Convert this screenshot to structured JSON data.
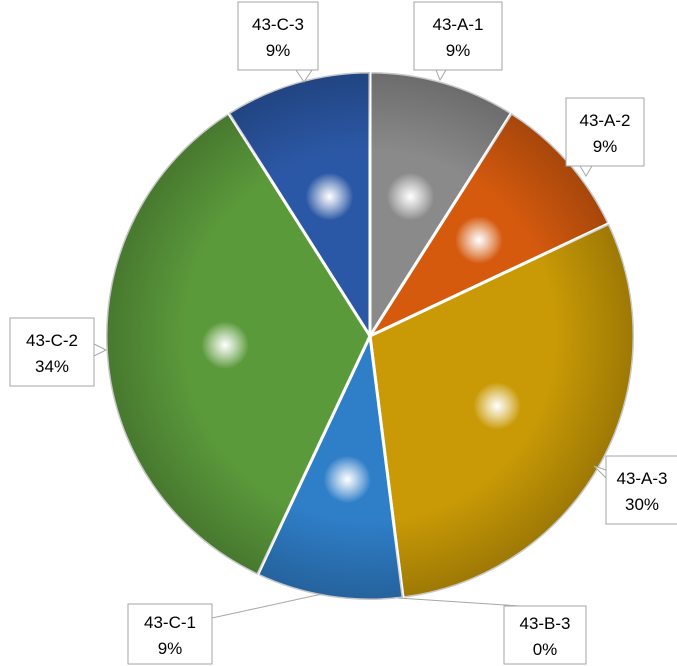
{
  "chart_data": {
    "type": "pie",
    "title": "",
    "start_angle_deg": 0,
    "direction": "clockwise",
    "slices": [
      {
        "label": "43-A-1",
        "value": 9,
        "value_label": "9%",
        "color": "#8a8a8a"
      },
      {
        "label": "43-A-2",
        "value": 9,
        "value_label": "9%",
        "color": "#d55a0e"
      },
      {
        "label": "43-A-3",
        "value": 30,
        "value_label": "30%",
        "color": "#c99a06"
      },
      {
        "label": "43-B-3",
        "value": 0,
        "value_label": "0%",
        "color": "#4472c4"
      },
      {
        "label": "43-C-1",
        "value": 9,
        "value_label": "9%",
        "color": "#2f7ec8"
      },
      {
        "label": "43-C-2",
        "value": 34,
        "value_label": "34%",
        "color": "#5b9a3b"
      },
      {
        "label": "43-C-3",
        "value": 9,
        "value_label": "9%",
        "color": "#2b58a6"
      }
    ]
  }
}
